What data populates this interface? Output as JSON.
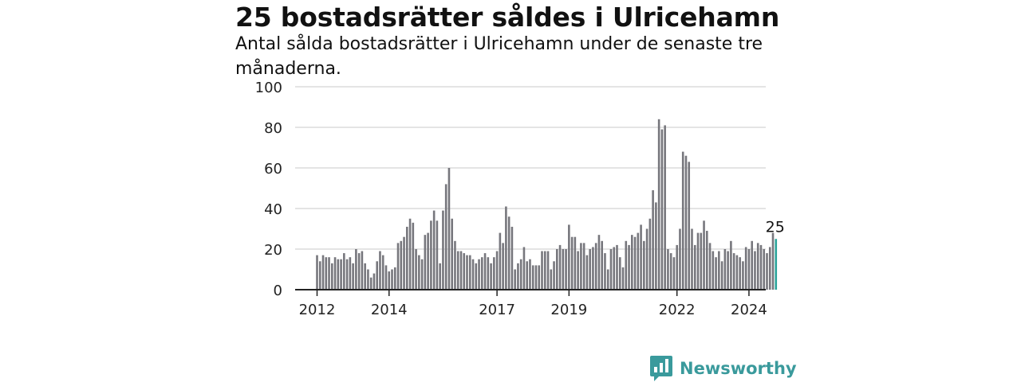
{
  "header": {
    "title": "25 bostadsrätter såldes i Ulricehamn",
    "subtitle": "Antal sålda bostadsrätter i Ulricehamn under de senaste tre månaderna."
  },
  "brand": {
    "name": "Newsworthy",
    "color": "#3a9a9c"
  },
  "colors": {
    "bar": "#77777d",
    "highlight": "#2aa39a",
    "grid": "#dcdcdc",
    "axis": "#222222"
  },
  "chart_data": {
    "type": "bar",
    "x_start": "2012-01",
    "x_end": "2024-11",
    "ylim": [
      0,
      100
    ],
    "yticks": [
      "0",
      "20",
      "40",
      "60",
      "80",
      "100"
    ],
    "xticks": [
      "2012",
      "2014",
      "2017",
      "2019",
      "2022",
      "2024"
    ],
    "grid": true,
    "highlight_label": "25",
    "values": [
      17,
      14,
      17,
      16,
      16,
      13,
      16,
      15,
      15,
      18,
      15,
      16,
      13,
      20,
      18,
      19,
      13,
      10,
      6,
      8,
      14,
      19,
      17,
      12,
      9,
      10,
      11,
      23,
      24,
      26,
      31,
      35,
      33,
      20,
      17,
      15,
      27,
      28,
      34,
      39,
      34,
      13,
      39,
      52,
      60,
      35,
      24,
      19,
      19,
      18,
      17,
      17,
      15,
      13,
      15,
      16,
      18,
      16,
      13,
      16,
      19,
      28,
      23,
      41,
      36,
      31,
      10,
      13,
      15,
      21,
      14,
      15,
      12,
      12,
      12,
      19,
      19,
      19,
      10,
      14,
      20,
      22,
      20,
      20,
      32,
      26,
      26,
      19,
      23,
      23,
      17,
      20,
      21,
      23,
      27,
      24,
      18,
      10,
      20,
      21,
      22,
      16,
      11,
      24,
      22,
      27,
      26,
      28,
      32,
      24,
      30,
      35,
      49,
      43,
      84,
      79,
      81,
      20,
      18,
      16,
      22,
      30,
      68,
      66,
      63,
      30,
      22,
      28,
      28,
      34,
      29,
      23,
      19,
      16,
      19,
      14,
      20,
      19,
      24,
      18,
      17,
      16,
      14,
      21,
      20,
      24,
      19,
      23,
      22,
      20,
      18,
      21,
      28,
      25
    ]
  }
}
